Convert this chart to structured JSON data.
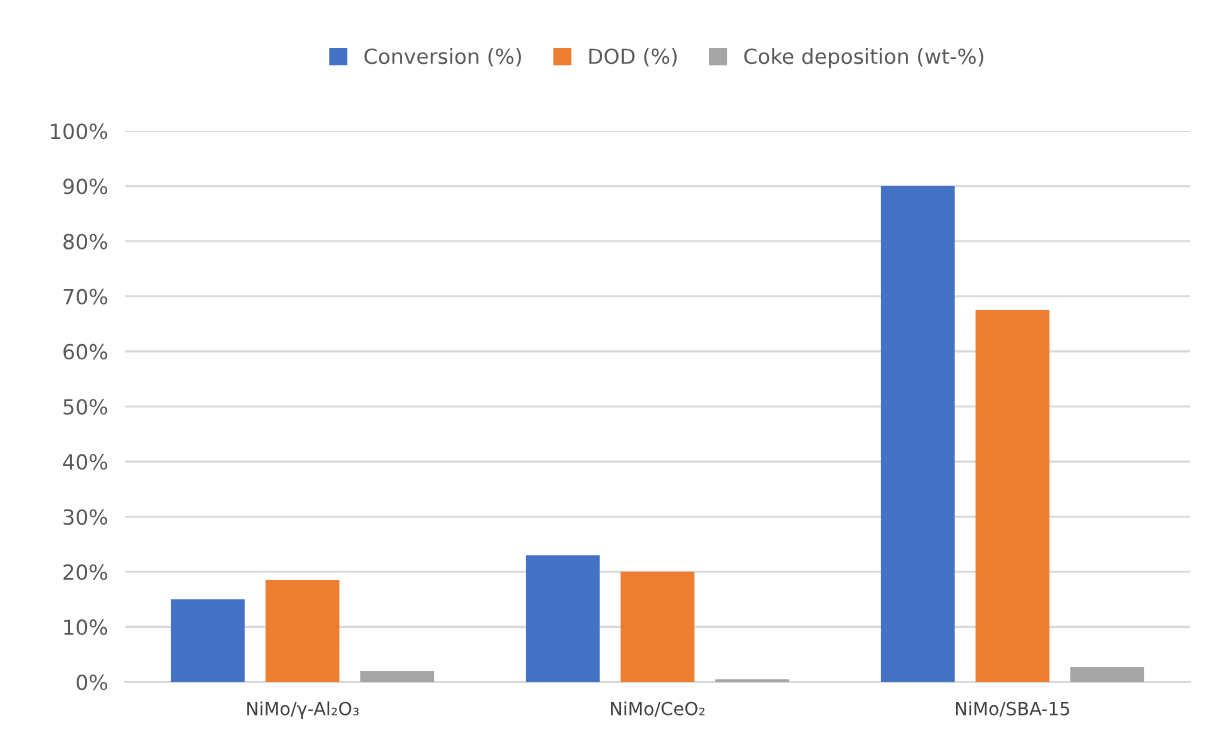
{
  "chart_data": {
    "type": "bar",
    "categories": [
      "NiMo/γ-Al₂O₃",
      "NiMo/CeO₂",
      "NiMo/SBA-15"
    ],
    "series": [
      {
        "name": "Conversion (%)",
        "color": "#4472c4",
        "values": [
          15,
          23,
          90
        ]
      },
      {
        "name": "DOD (%)",
        "color": "#ed7d31",
        "values": [
          18.5,
          20,
          67.5
        ]
      },
      {
        "name": "Coke deposition (wt-%)",
        "color": "#a5a5a5",
        "values": [
          2,
          0.5,
          2.7
        ]
      }
    ],
    "ylim": [
      0,
      100
    ],
    "yticks": [
      {
        "value": 0,
        "label": "0%"
      },
      {
        "value": 10,
        "label": "10%"
      },
      {
        "value": 20,
        "label": "20%"
      },
      {
        "value": 30,
        "label": "30%"
      },
      {
        "value": 40,
        "label": "40%"
      },
      {
        "value": 50,
        "label": "50%"
      },
      {
        "value": 60,
        "label": "60%"
      },
      {
        "value": 70,
        "label": "70%"
      },
      {
        "value": 80,
        "label": "80%"
      },
      {
        "value": 90,
        "label": "90%"
      },
      {
        "value": 100,
        "label": "100%"
      }
    ],
    "grid": "y",
    "legend": "top"
  }
}
